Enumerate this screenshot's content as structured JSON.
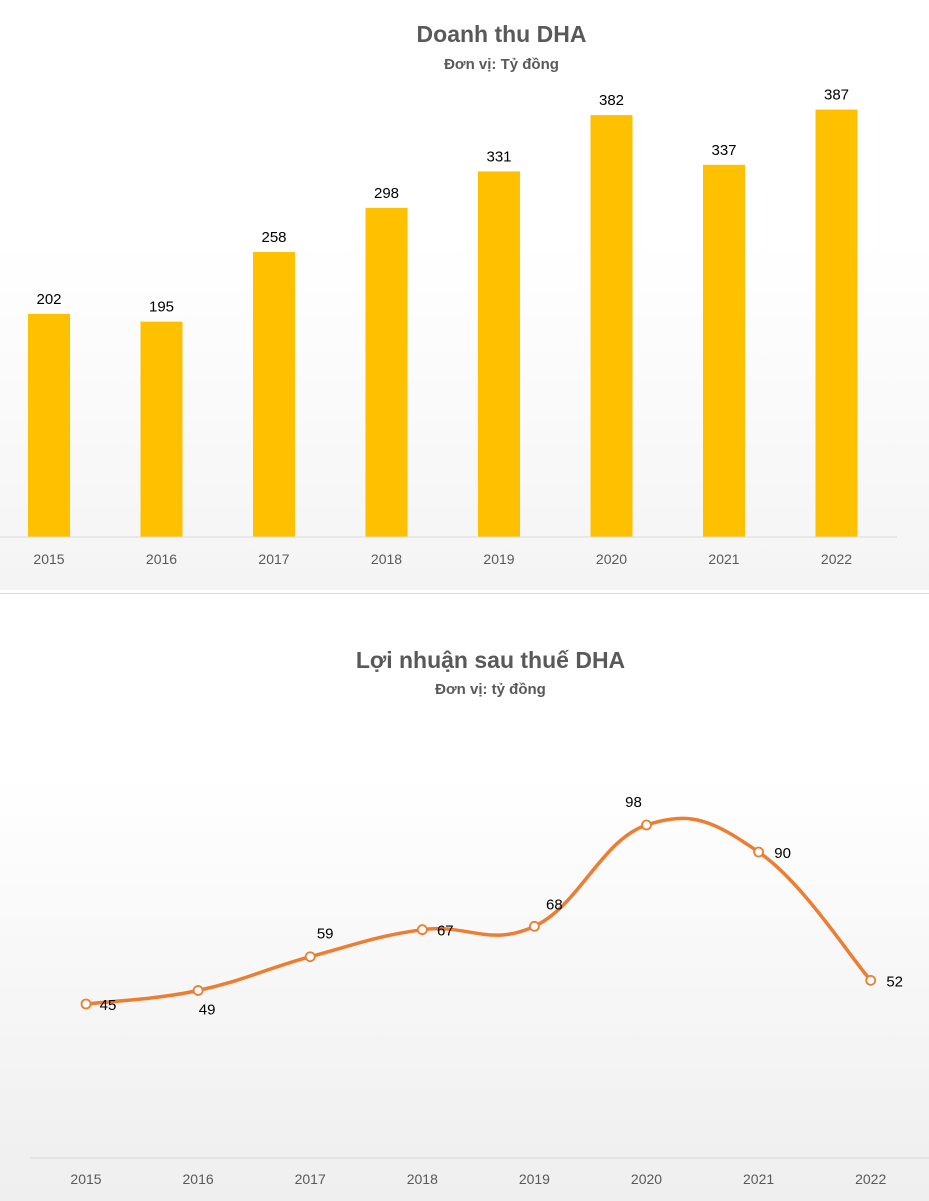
{
  "colors": {
    "bar": "#FFC000",
    "line": "#ED7D31",
    "marker_fill": "#FFFFFF",
    "title": "#595959",
    "axis_text": "#595959"
  },
  "chart_data": [
    {
      "type": "bar",
      "title": "Doanh thu DHA",
      "subtitle": "Đơn vị: Tỷ đồng",
      "categories": [
        "2015",
        "2016",
        "2017",
        "2018",
        "2019",
        "2020",
        "2021",
        "2022"
      ],
      "values": [
        202,
        195,
        258,
        298,
        331,
        382,
        337,
        387
      ],
      "data_labels": [
        "202",
        "195",
        "258",
        "298",
        "331",
        "382",
        "337",
        "387"
      ],
      "xlabel": "",
      "ylabel": "",
      "ylim": [
        0,
        450
      ],
      "grid": false,
      "legend": "none"
    },
    {
      "type": "line",
      "smooth": true,
      "markers": true,
      "title": "Lợi nhuận sau thuế DHA",
      "subtitle": "Đơn vị: tỷ đồng",
      "categories": [
        "2015",
        "2016",
        "2017",
        "2018",
        "2019",
        "2020",
        "2021",
        "2022"
      ],
      "values": [
        45,
        49,
        59,
        67,
        68,
        98,
        90,
        52
      ],
      "data_labels": [
        "45",
        "49",
        "59",
        "67",
        "68",
        "98",
        "90",
        "52"
      ],
      "xlabel": "",
      "ylabel": "",
      "ylim": [
        0,
        105
      ],
      "grid": false,
      "legend": "none"
    }
  ]
}
